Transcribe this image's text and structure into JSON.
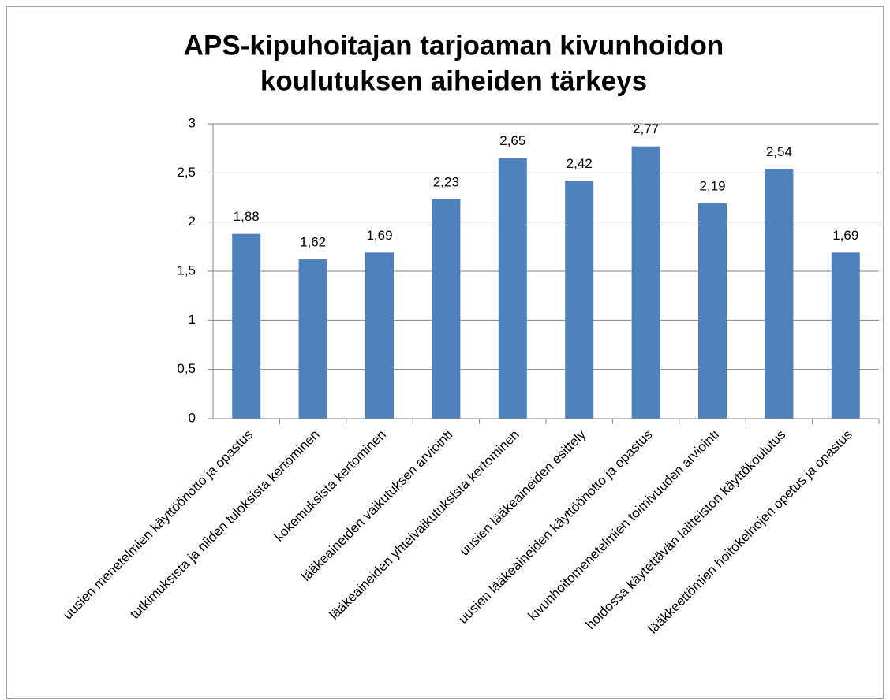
{
  "chart_data": {
    "type": "bar",
    "title": [
      "APS-kipuhoitajan tarjoaman kivunhoidon",
      "koulutuksen aiheiden tärkeys"
    ],
    "categories": [
      "uusien menetelmien käyttöönotto ja opastus",
      "tutkimuksista ja niiden tuloksista kertominen",
      "kokemuksista kertominen",
      "lääkeaineiden vaikutuksen arviointi",
      "lääkeaineiden yhteivaikutuksista kertominen",
      "uusien lääkeaineiden esittely",
      "uusien lääkeaineiden käyttöönotto ja opastus",
      "kivunhoitomenetelmien toimivuuden arviointi",
      "hoidossa käytettävän laitteiston käyttökoulutus",
      "lääkkeettömien hoitokeinojen opetus ja opastus"
    ],
    "values": [
      1.88,
      1.62,
      1.69,
      2.23,
      2.65,
      2.42,
      2.77,
      2.19,
      2.54,
      1.69
    ],
    "value_labels": [
      "1,88",
      "1,62",
      "1,69",
      "2,23",
      "2,65",
      "2,42",
      "2,77",
      "2,19",
      "2,54",
      "1,69"
    ],
    "color": "#4f81bd",
    "ylim": [
      0,
      3
    ],
    "yticks": [
      0,
      {
        "value": 0.5,
        "label": "0,5"
      },
      1,
      {
        "value": 1.5,
        "label": "1,5"
      },
      2,
      {
        "value": 2.5,
        "label": "2,5"
      },
      3
    ],
    "grid": true
  }
}
